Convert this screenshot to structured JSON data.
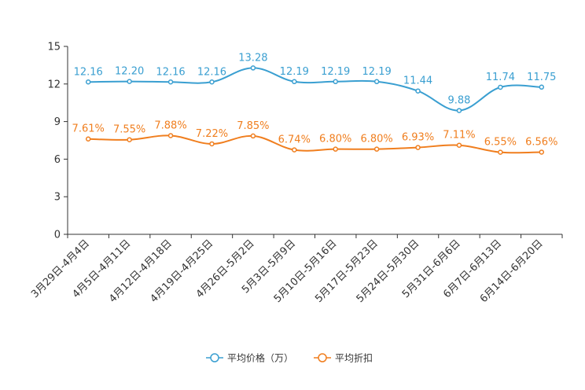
{
  "chart_data": {
    "type": "line",
    "title": "",
    "xlabel": "",
    "ylabel": "",
    "ylim": [
      0,
      15
    ],
    "yticks": [
      0,
      3,
      6,
      9,
      12,
      15
    ],
    "grid": false,
    "legend_position": "bottom-center",
    "categories": [
      "3月29日-4月4日",
      "4月5日-4月11日",
      "4月12日-4月18日",
      "4月19日-4月25日",
      "4月26日-5月2日",
      "5月3日-5月9日",
      "5月10日-5月16日",
      "5月17日-5月23日",
      "5月24日-5月30日",
      "5月31日-6月6日",
      "6月7日-6月13日",
      "6月14日-6月20日"
    ],
    "series": [
      {
        "name": "平均价格（万）",
        "color": "#3a9fd1",
        "values": [
          12.16,
          12.2,
          12.16,
          12.16,
          13.28,
          12.19,
          12.19,
          12.19,
          11.44,
          9.88,
          11.74,
          11.75
        ],
        "labels": [
          "12.16",
          "12.20",
          "12.16",
          "12.16",
          "13.28",
          "12.19",
          "12.19",
          "12.19",
          "11.44",
          "9.88",
          "11.74",
          "11.75"
        ]
      },
      {
        "name": "平均折扣",
        "color": "#f07e1e",
        "values": [
          7.61,
          7.55,
          7.88,
          7.22,
          7.85,
          6.74,
          6.8,
          6.8,
          6.93,
          7.11,
          6.55,
          6.56
        ],
        "labels": [
          "7.61%",
          "7.55%",
          "7.88%",
          "7.22%",
          "7.85%",
          "6.74%",
          "6.80%",
          "6.80%",
          "6.93%",
          "7.11%",
          "6.55%",
          "6.56%"
        ]
      }
    ]
  }
}
